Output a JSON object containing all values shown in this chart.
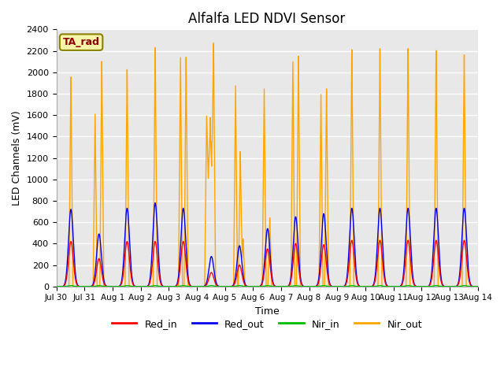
{
  "title": "Alfalfa LED NDVI Sensor",
  "ylabel": "LED Channels (mV)",
  "xlabel": "Time",
  "annotation": "TA_rad",
  "annotation_color": "#8B0000",
  "annotation_bg": "#F5F5AA",
  "annotation_border": "#8B8000",
  "plot_bg": "#E8E8E8",
  "legend_labels": [
    "Red_in",
    "Red_out",
    "Nir_in",
    "Nir_out"
  ],
  "colors": {
    "Red_in": "#FF0000",
    "Red_out": "#0000EE",
    "Nir_in": "#00BB00",
    "Nir_out": "#FFA500"
  },
  "ylim": [
    0,
    2400
  ],
  "yticks": [
    0,
    200,
    400,
    600,
    800,
    1000,
    1200,
    1400,
    1600,
    1800,
    2000,
    2200,
    2400
  ],
  "tick_dates": [
    "Jul 30",
    "Jul 31",
    "Aug 1",
    "Aug 2",
    "Aug 3",
    "Aug 4",
    "Aug 5",
    "Aug 6",
    "Aug 7",
    "Aug 8",
    "Aug 9",
    "Aug 10",
    "Aug 11",
    "Aug 12",
    "Aug 13",
    "Aug 14"
  ],
  "num_days": 15,
  "line_width": 1.0
}
